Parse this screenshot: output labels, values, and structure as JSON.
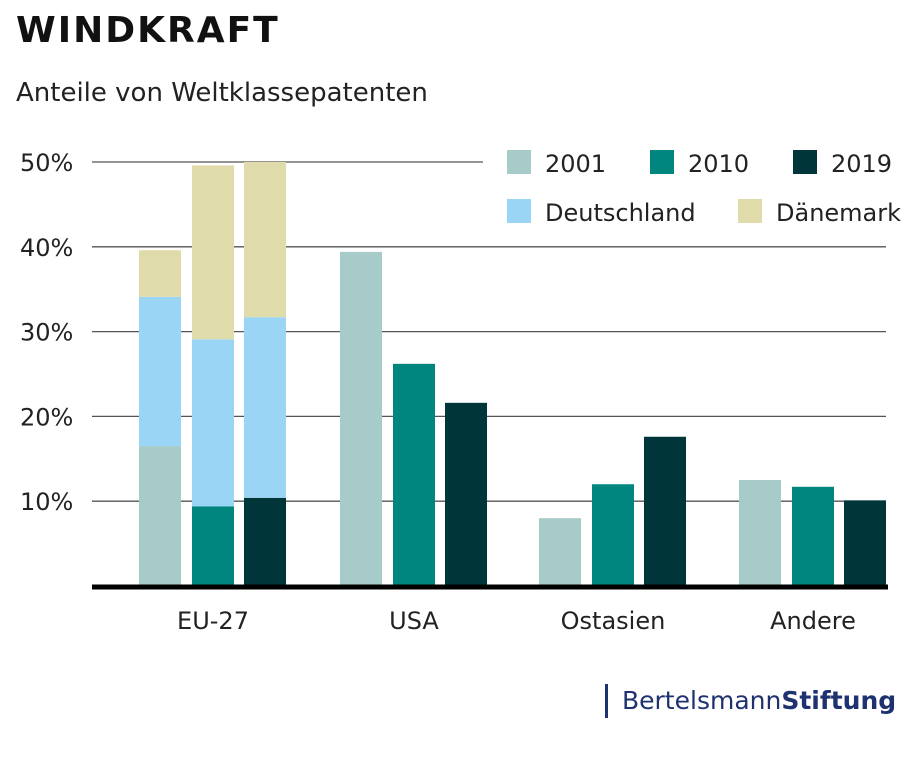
{
  "chart_data": {
    "type": "bar",
    "title": "WINDKRAFT",
    "subtitle": "Anteile von Weltklassepatenten",
    "categories": [
      "EU-27",
      "USA",
      "Ostasien",
      "Andere"
    ],
    "years": [
      "2001",
      "2010",
      "2019"
    ],
    "ylim": [
      0,
      50
    ],
    "yticks": [
      10,
      20,
      30,
      40,
      50
    ],
    "ytick_labels": [
      "10%",
      "20%",
      "30%",
      "40%",
      "50%"
    ],
    "grid": true,
    "legend_placement": "top-right",
    "legend": [
      {
        "name": "2001",
        "color": "#a6cbc9"
      },
      {
        "name": "2010",
        "color": "#00857f"
      },
      {
        "name": "2019",
        "color": "#00363a"
      },
      {
        "name": "Deutschland",
        "color": "#9bd5f5"
      },
      {
        "name": "Dänemark",
        "color": "#e0dbaa"
      }
    ],
    "series": [
      {
        "name": "2001",
        "values": [
          16.5,
          39.4,
          8.0,
          12.5
        ]
      },
      {
        "name": "2010",
        "values": [
          9.4,
          26.2,
          12.0,
          11.7
        ]
      },
      {
        "name": "2019",
        "values": [
          10.4,
          21.6,
          17.6,
          10.1
        ]
      }
    ],
    "eu_stack": {
      "Deutschland": [
        17.6,
        19.7,
        21.3
      ],
      "Dänemark": [
        5.5,
        20.5,
        18.3
      ]
    }
  },
  "logo": {
    "part1": "Bertelsmann",
    "part2": "Stiftung"
  }
}
